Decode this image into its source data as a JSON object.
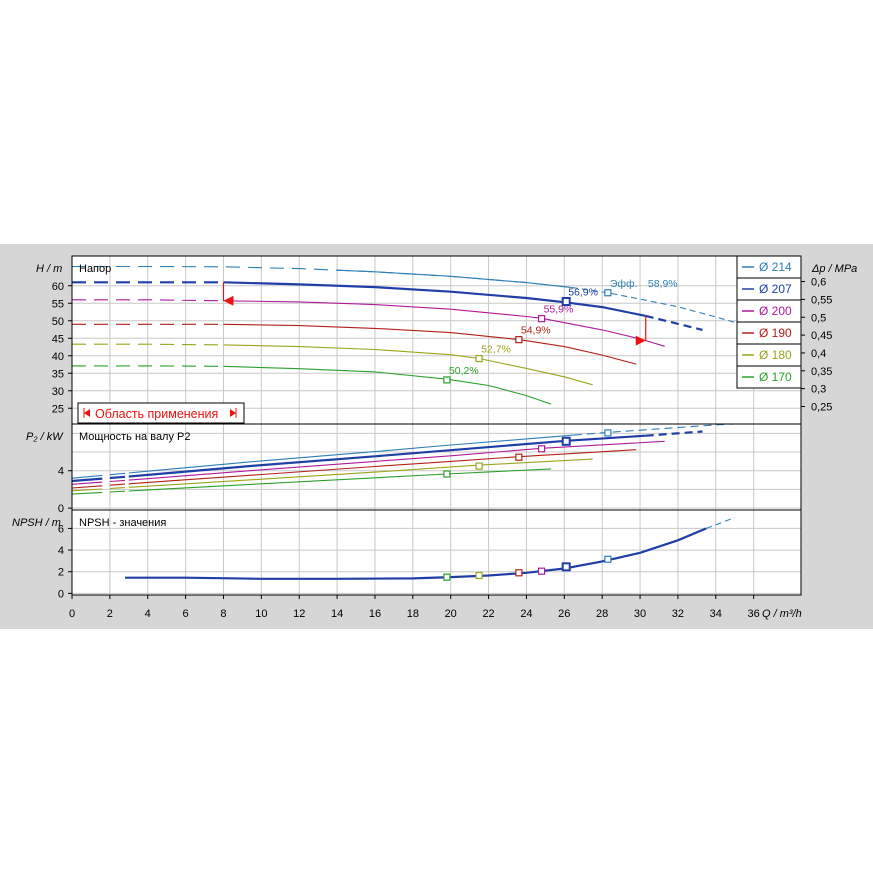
{
  "chart_data": {
    "type": "line",
    "x_unit_label": "Q / m³/h",
    "x_ticks": [
      0,
      2,
      4,
      6,
      8,
      10,
      12,
      14,
      16,
      18,
      20,
      22,
      24,
      26,
      28,
      30,
      32,
      34,
      36
    ],
    "xlim": [
      0,
      38.5
    ],
    "colors": {
      "214": "#2c7fb8",
      "207": "#1f3fa6",
      "200": "#b0199c",
      "190": "#b32018",
      "180": "#9aa51a",
      "170": "#2aa12a"
    },
    "panels": {
      "head": {
        "ylabel": "H / m",
        "title": "Напор",
        "y_ticks": [
          25,
          30,
          35,
          40,
          45,
          50,
          55,
          60
        ],
        "ylim": [
          20.5,
          68.5
        ],
        "right_ylabel": "Δp / MPa",
        "right_ticks": [
          "0,25",
          "0,3",
          "0,35",
          "0,4",
          "0,45",
          "0,5",
          "0,55",
          "0,6"
        ],
        "right_tick_values_m": [
          25.5,
          30.6,
          35.7,
          40.8,
          45.9,
          51.0,
          56.1,
          61.2
        ],
        "range_label": "Область применения",
        "range_bounds": [
          8.0,
          30.3
        ],
        "efficiency_label": "Эфф.",
        "series": [
          {
            "diameter": "214",
            "label": "Ø 214",
            "bold": false,
            "dash_x": [
              0,
              26.4
            ],
            "solid_x": [
              0,
              26.4
            ],
            "points": [
              [
                0,
                65.5
              ],
              [
                4,
                65.5
              ],
              [
                8,
                65.4
              ],
              [
                12,
                64.9
              ],
              [
                16,
                64
              ],
              [
                20,
                62.7
              ],
              [
                24,
                60.9
              ],
              [
                26.4,
                59.5
              ],
              [
                28.3,
                58
              ],
              [
                30,
                56.2
              ],
              [
                32,
                54
              ],
              [
                34,
                51.1
              ],
              [
                35.2,
                49.2
              ]
            ],
            "bep": [
              28.3,
              58.0
            ],
            "eff": "58,9%"
          },
          {
            "diameter": "207",
            "label": "Ø 207",
            "bold": true,
            "dash_x": [
              0,
              8
            ],
            "solid_x": [
              8,
              30.3
            ],
            "points": [
              [
                0,
                61
              ],
              [
                4,
                61
              ],
              [
                8,
                61
              ],
              [
                12,
                60.4
              ],
              [
                16,
                59.6
              ],
              [
                20,
                58.3
              ],
              [
                24,
                56.5
              ],
              [
                26,
                55.3
              ],
              [
                28,
                53.9
              ],
              [
                30.3,
                51.4
              ],
              [
                31.5,
                49.8
              ],
              [
                33.3,
                47.4
              ]
            ],
            "bep": [
              26.1,
              55.5
            ],
            "eff": "56,9%"
          },
          {
            "diameter": "200",
            "label": "Ø 200",
            "bold": false,
            "dash_x": [
              0,
              8
            ],
            "solid_x": [
              8,
              31.3
            ],
            "points": [
              [
                0,
                56
              ],
              [
                4,
                56
              ],
              [
                8,
                55.7
              ],
              [
                12,
                55.4
              ],
              [
                16,
                54.6
              ],
              [
                20,
                53.3
              ],
              [
                24,
                51.2
              ],
              [
                24.8,
                50.7
              ],
              [
                28,
                47.4
              ],
              [
                30,
                44.8
              ],
              [
                31.3,
                42.7
              ]
            ],
            "bep": [
              24.8,
              50.6
            ],
            "eff": "55,9%"
          },
          {
            "diameter": "190",
            "label": "Ø 190",
            "bold": false,
            "dash_x": [
              0,
              8
            ],
            "solid_x": [
              8,
              29.8
            ],
            "points": [
              [
                0,
                49
              ],
              [
                4,
                49
              ],
              [
                8,
                49
              ],
              [
                12,
                48.6
              ],
              [
                16,
                47.8
              ],
              [
                20,
                46.6
              ],
              [
                23.6,
                44.6
              ],
              [
                26,
                42.6
              ],
              [
                28,
                40.2
              ],
              [
                29.8,
                37.6
              ]
            ],
            "bep": [
              23.6,
              44.6
            ],
            "eff": "54,9%"
          },
          {
            "diameter": "180",
            "label": "Ø 180",
            "bold": false,
            "dash_x": [
              0,
              8
            ],
            "solid_x": [
              8,
              27.5
            ],
            "points": [
              [
                0,
                43.3
              ],
              [
                4,
                43.3
              ],
              [
                8,
                43.1
              ],
              [
                12,
                42.6
              ],
              [
                16,
                41.8
              ],
              [
                20,
                40.3
              ],
              [
                21.5,
                39.2
              ],
              [
                24,
                36.4
              ],
              [
                26,
                34
              ],
              [
                27.5,
                31.7
              ]
            ],
            "bep": [
              21.5,
              39.2
            ],
            "eff": "52,7%"
          },
          {
            "diameter": "170",
            "label": "Ø 170",
            "bold": false,
            "dash_x": [
              0,
              8
            ],
            "solid_x": [
              8,
              25.3
            ],
            "points": [
              [
                0,
                37.1
              ],
              [
                4,
                37.1
              ],
              [
                8,
                37
              ],
              [
                12,
                36.3
              ],
              [
                16,
                35.4
              ],
              [
                19.8,
                33.3
              ],
              [
                22,
                31.5
              ],
              [
                24,
                28.6
              ],
              [
                25.3,
                26.2
              ]
            ],
            "bep": [
              19.8,
              33.1
            ],
            "eff": "50,2%"
          }
        ]
      },
      "power": {
        "ylabel": "P₂ / kW",
        "title": "Мощность на валу P2",
        "y_ticks": [
          0,
          4
        ],
        "ylim": [
          -0.2,
          9.0
        ],
        "series": [
          {
            "diameter": "214",
            "bold": false,
            "points": [
              [
                0,
                3.2
              ],
              [
                4,
                3.95
              ],
              [
                10,
                5.05
              ],
              [
                16,
                6.05
              ],
              [
                20,
                6.75
              ],
              [
                28.3,
                8.1
              ],
              [
                34,
                8.9
              ],
              [
                35,
                9.0
              ]
            ],
            "bep": [
              28.3,
              8.05
            ]
          },
          {
            "diameter": "207",
            "bold": true,
            "points": [
              [
                0,
                2.9
              ],
              [
                4,
                3.55
              ],
              [
                10,
                4.6
              ],
              [
                16,
                5.55
              ],
              [
                20,
                6.2
              ],
              [
                26.1,
                7.2
              ],
              [
                30.3,
                7.75
              ],
              [
                33.3,
                8.2
              ]
            ],
            "bep": [
              26.1,
              7.15
            ]
          },
          {
            "diameter": "200",
            "bold": false,
            "points": [
              [
                0,
                2.55
              ],
              [
                4,
                3.15
              ],
              [
                10,
                4.1
              ],
              [
                16,
                5.0
              ],
              [
                20,
                5.6
              ],
              [
                24.8,
                6.4
              ],
              [
                31.3,
                7.15
              ]
            ],
            "bep": [
              24.8,
              6.35
            ]
          },
          {
            "diameter": "190",
            "bold": false,
            "points": [
              [
                0,
                2.15
              ],
              [
                4,
                2.75
              ],
              [
                10,
                3.6
              ],
              [
                16,
                4.45
              ],
              [
                20,
                5.0
              ],
              [
                23.6,
                5.5
              ],
              [
                29.8,
                6.25
              ]
            ],
            "bep": [
              23.6,
              5.45
            ]
          },
          {
            "diameter": "180",
            "bold": false,
            "points": [
              [
                0,
                1.85
              ],
              [
                4,
                2.35
              ],
              [
                10,
                3.1
              ],
              [
                16,
                3.85
              ],
              [
                21.5,
                4.6
              ],
              [
                27.5,
                5.25
              ]
            ],
            "bep": [
              21.5,
              4.5
            ]
          },
          {
            "diameter": "170",
            "bold": false,
            "points": [
              [
                0,
                1.5
              ],
              [
                4,
                1.95
              ],
              [
                10,
                2.6
              ],
              [
                16,
                3.25
              ],
              [
                19.8,
                3.65
              ],
              [
                25.3,
                4.2
              ]
            ],
            "bep": [
              19.8,
              3.65
            ]
          }
        ]
      },
      "npsh": {
        "ylabel": "NPSH / m",
        "title": "NPSH - значения",
        "y_ticks": [
          0,
          2,
          4,
          6
        ],
        "ylim": [
          -0.15,
          7.7
        ],
        "curve": [
          [
            2.8,
            1.45
          ],
          [
            6,
            1.45
          ],
          [
            10,
            1.35
          ],
          [
            14,
            1.35
          ],
          [
            18,
            1.38
          ],
          [
            20,
            1.5
          ],
          [
            22,
            1.65
          ],
          [
            24,
            1.9
          ],
          [
            26,
            2.3
          ],
          [
            28,
            2.95
          ],
          [
            30,
            3.75
          ],
          [
            32,
            4.9
          ],
          [
            33.5,
            6.0
          ]
        ],
        "curve_dash": [
          [
            33.5,
            6.0
          ],
          [
            35,
            7.0
          ]
        ],
        "markers": [
          {
            "diameter": "170",
            "x": 19.8,
            "y": 1.5
          },
          {
            "diameter": "180",
            "x": 21.5,
            "y": 1.65
          },
          {
            "diameter": "190",
            "x": 23.6,
            "y": 1.9
          },
          {
            "diameter": "200",
            "x": 24.8,
            "y": 2.05
          },
          {
            "diameter": "207",
            "x": 26.1,
            "y": 2.45
          },
          {
            "diameter": "214",
            "x": 28.3,
            "y": 3.15
          }
        ]
      }
    },
    "legend": {
      "placement": "right",
      "items": [
        {
          "label": "Ø 214",
          "color": "#2c7fb8"
        },
        {
          "label": "Ø 207",
          "color": "#1f3fa6"
        },
        {
          "label": "Ø 200",
          "color": "#b0199c"
        },
        {
          "label": "Ø 190",
          "color": "#b32018"
        },
        {
          "label": "Ø 180",
          "color": "#9aa51a"
        },
        {
          "label": "Ø 170",
          "color": "#2aa12a"
        }
      ]
    },
    "grid": true
  }
}
